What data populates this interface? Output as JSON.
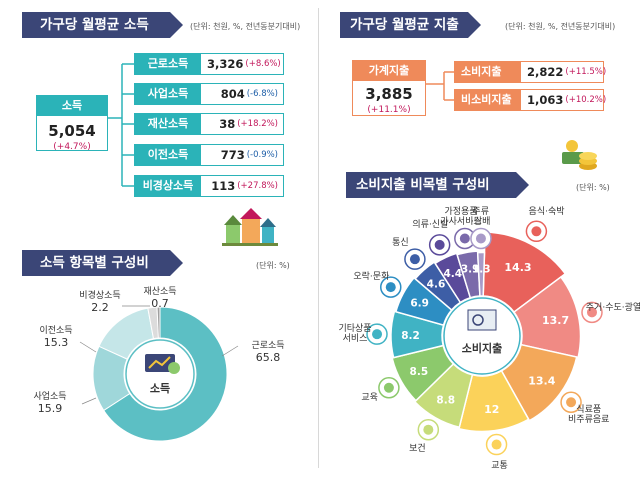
{
  "income": {
    "title": "가구당 월평균 소득",
    "unit": "(단위: 천원, %, 전년동분기대비)",
    "total": {
      "label": "소득",
      "value": "5,054",
      "change": "(+4.7%)"
    },
    "items": [
      {
        "label": "근로소득",
        "value": "3,326",
        "change": "(+8.6%)",
        "neg": false
      },
      {
        "label": "사업소득",
        "value": "804",
        "change": "(-6.8%)",
        "neg": true
      },
      {
        "label": "재산소득",
        "value": "38",
        "change": "(+18.2%)",
        "neg": false
      },
      {
        "label": "이전소득",
        "value": "773",
        "change": "(-0.9%)",
        "neg": true
      },
      {
        "label": "비경상소득",
        "value": "113",
        "change": "(+27.8%)",
        "neg": false
      }
    ]
  },
  "expenditure": {
    "title": "가구당 월평균 지출",
    "unit": "(단위: 천원, %, 전년동분기대비)",
    "total": {
      "label": "가계지출",
      "value": "3,885",
      "change": "(+11.1%)"
    },
    "items": [
      {
        "label": "소비지출",
        "value": "2,822",
        "change": "(+11.5%)"
      },
      {
        "label": "비소비지출",
        "value": "1,063",
        "change": "(+10.2%)"
      }
    ]
  },
  "chart_data": [
    {
      "type": "pie",
      "title": "소득 항목별 구성비",
      "unit": "(단위: %)",
      "center_label": "소득",
      "categories": [
        "근로소득",
        "사업소득",
        "이전소득",
        "비경상소득",
        "재산소득"
      ],
      "values": [
        65.8,
        15.9,
        15.3,
        2.2,
        0.7
      ],
      "colors": [
        "#5cbfc4",
        "#9fd7da",
        "#c5e6e8",
        "#dcdcdc",
        "#a0a0a0"
      ]
    },
    {
      "type": "pie",
      "title": "소비지출 비목별 구성비",
      "unit": "(단위: %)",
      "center_label": "소비지출",
      "categories": [
        "음식·숙박",
        "주거·수도·광열",
        "식료품·비주류음료",
        "교통",
        "보건",
        "교육",
        "기타상품·서비스",
        "오락·문화",
        "통신",
        "의류·신발",
        "가정용품·가사서비스",
        "주류·담배"
      ],
      "labels_display": [
        "음식·숙박",
        "주거·수도·광열",
        "식료품|비주류음료",
        "교통",
        "보건",
        "교육",
        "기타상품|서비스",
        "오락·문화",
        "통신",
        "의류·신발",
        "가정용품|가사서비스",
        "주류|·담배"
      ],
      "values": [
        14.3,
        13.7,
        13.4,
        12.0,
        8.8,
        8.5,
        8.2,
        6.9,
        4.6,
        4.4,
        3.9,
        1.3
      ],
      "colors": [
        "#e8615b",
        "#f08a84",
        "#f3a85a",
        "#fbd25a",
        "#c6dc7a",
        "#8cc96c",
        "#40b3c4",
        "#2d8ec3",
        "#3d5ea6",
        "#5a4a9a",
        "#7a6aaa",
        "#a89ac8"
      ]
    }
  ]
}
